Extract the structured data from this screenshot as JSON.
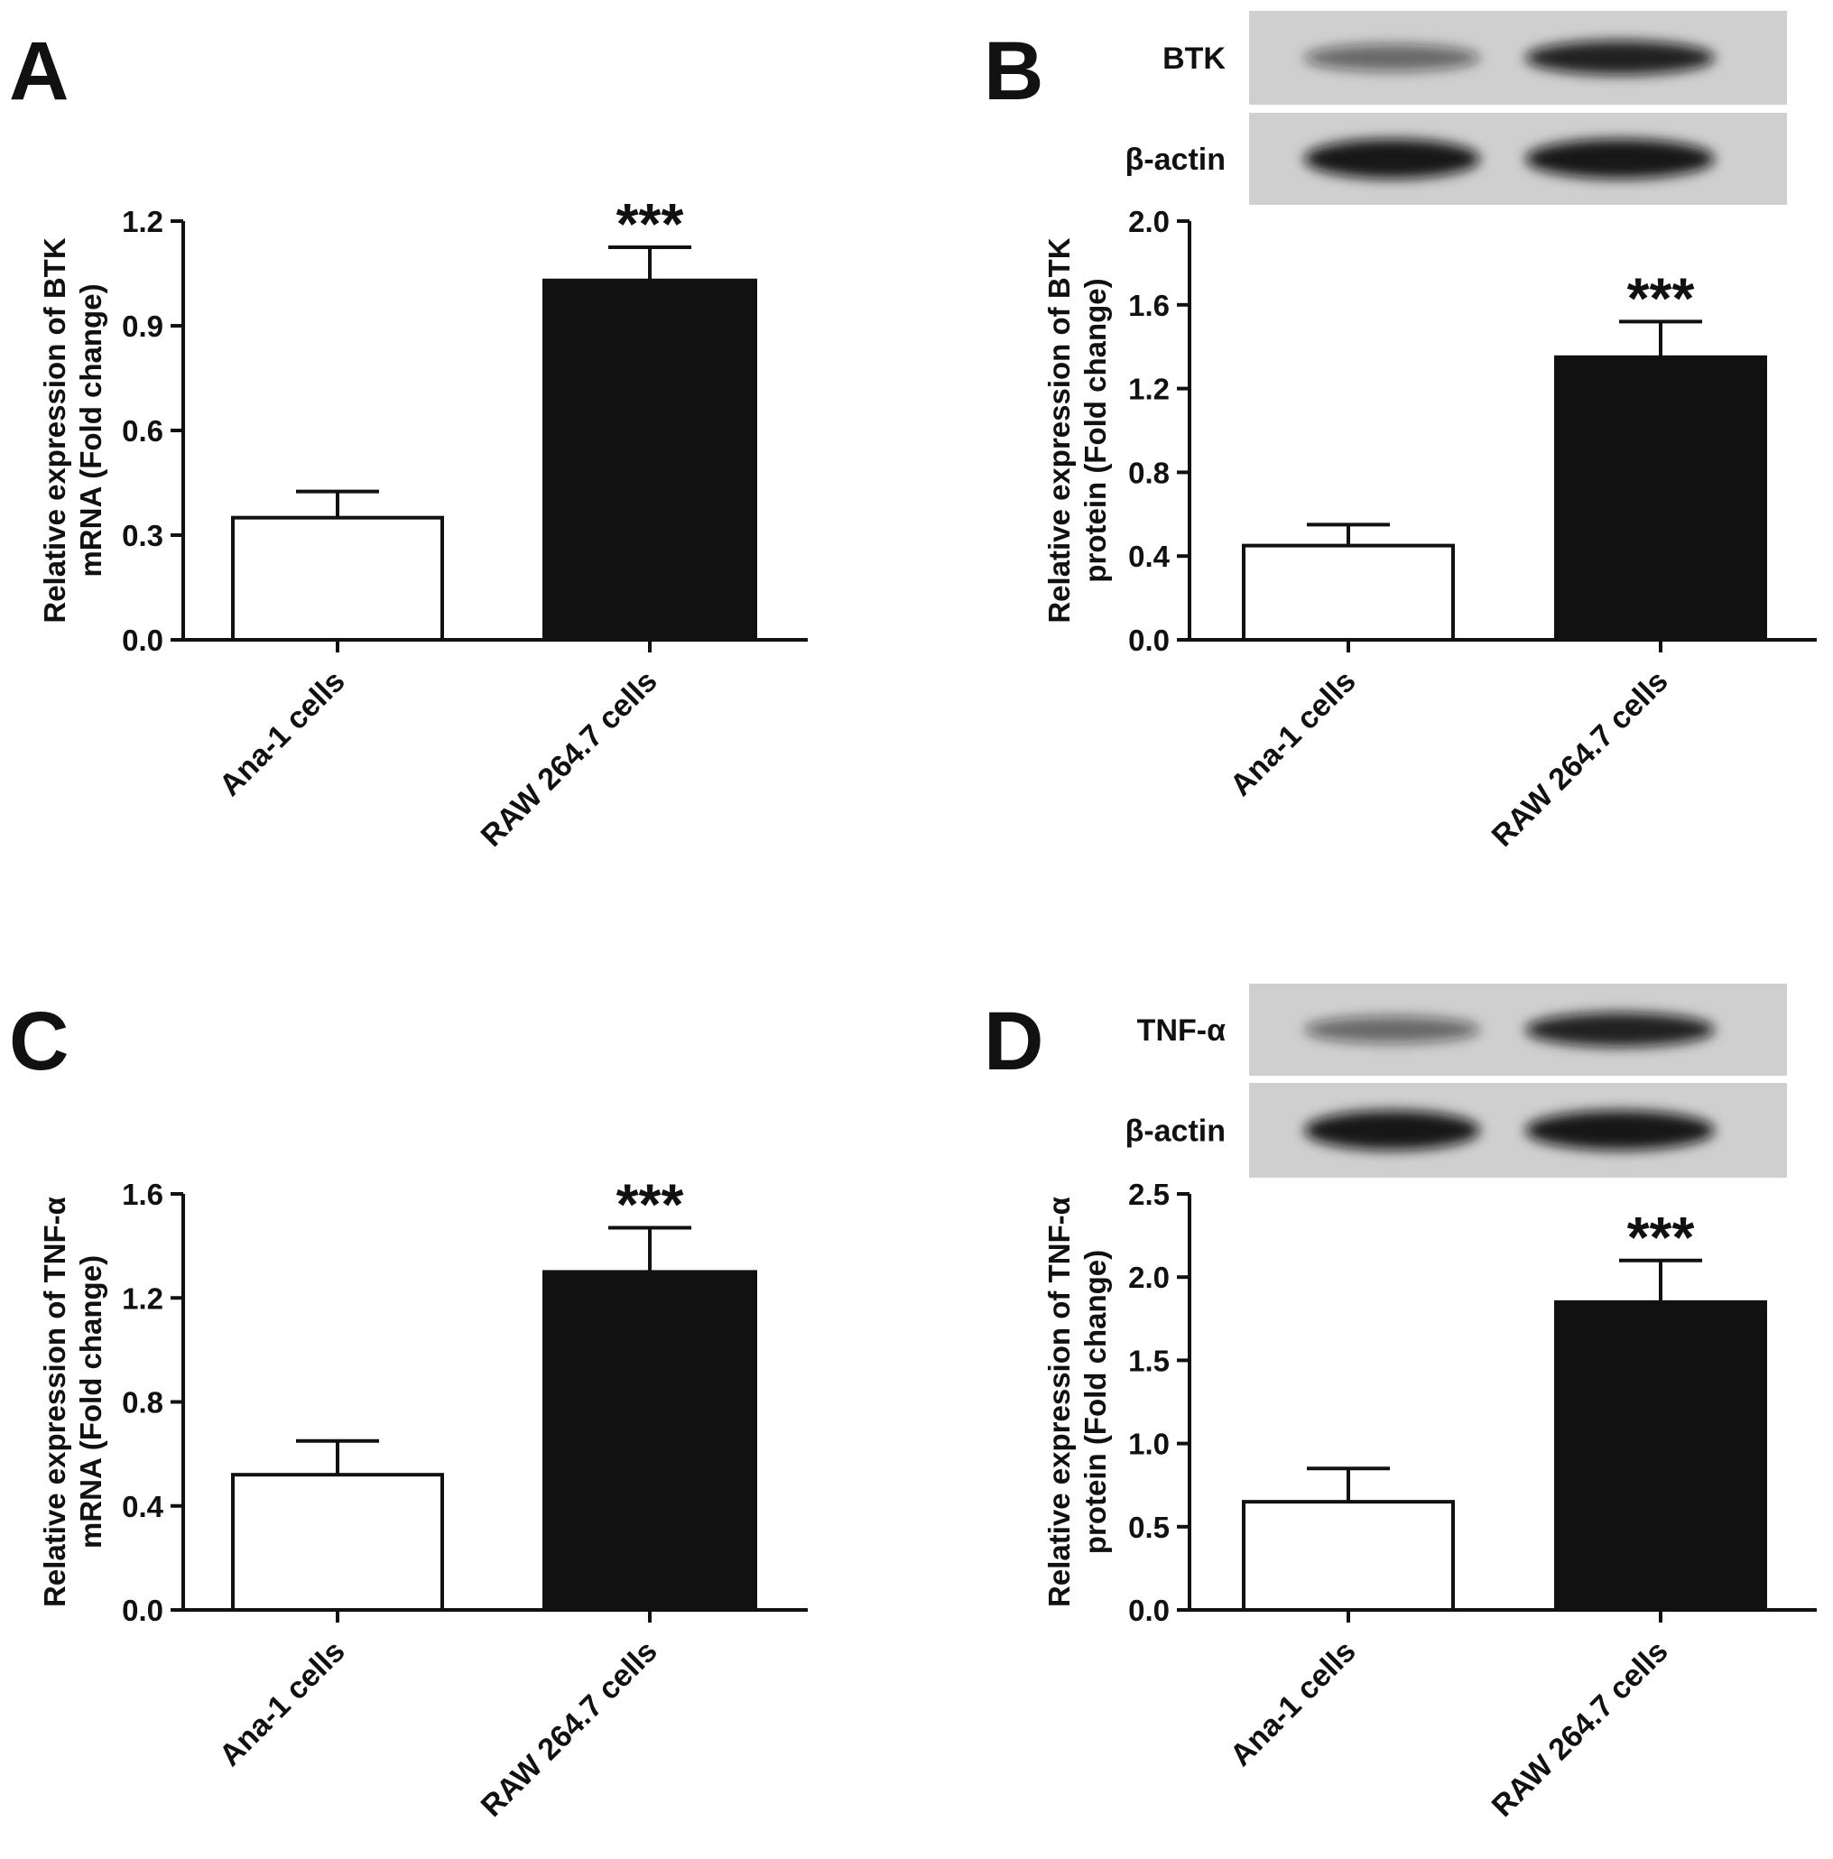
{
  "chart_data": [
    {
      "panel": "A",
      "type": "bar",
      "categories": [
        "Ana-1 cells",
        "RAW 264.7 cells"
      ],
      "values": [
        0.35,
        1.03
      ],
      "errors": [
        0.075,
        0.095
      ],
      "significance": [
        "",
        "***"
      ],
      "ylabel_lines": [
        "Relative expression of BTK",
        "mRNA (Fold change)"
      ],
      "ylim": [
        0,
        1.2
      ],
      "yticks": [
        "0.0",
        "0.3",
        "0.6",
        "0.9",
        "1.2"
      ],
      "bar_fills": [
        "#ffffff",
        "#111111"
      ],
      "blot": null
    },
    {
      "panel": "B",
      "type": "bar",
      "categories": [
        "Ana-1 cells",
        "RAW 264.7 cells"
      ],
      "values": [
        0.45,
        1.35
      ],
      "errors": [
        0.1,
        0.17
      ],
      "significance": [
        "",
        "***"
      ],
      "ylabel_lines": [
        "Relative expression of BTK",
        "protein (Fold change)"
      ],
      "ylim": [
        0,
        2.0
      ],
      "yticks": [
        "0.0",
        "0.4",
        "0.8",
        "1.2",
        "1.6",
        "2.0"
      ],
      "bar_fills": [
        "#ffffff",
        "#111111"
      ],
      "blot": {
        "rows": [
          "BTK",
          "β-actin"
        ]
      }
    },
    {
      "panel": "C",
      "type": "bar",
      "categories": [
        "Ana-1 cells",
        "RAW 264.7 cells"
      ],
      "values": [
        0.52,
        1.3
      ],
      "errors": [
        0.13,
        0.17
      ],
      "significance": [
        "",
        "***"
      ],
      "ylabel_lines": [
        "Relative expression of TNF-α",
        "mRNA (Fold change)"
      ],
      "ylim": [
        0,
        1.6
      ],
      "yticks": [
        "0.0",
        "0.4",
        "0.8",
        "1.2",
        "1.6"
      ],
      "bar_fills": [
        "#ffffff",
        "#111111"
      ],
      "blot": null
    },
    {
      "panel": "D",
      "type": "bar",
      "categories": [
        "Ana-1 cells",
        "RAW 264.7 cells"
      ],
      "values": [
        0.65,
        1.85
      ],
      "errors": [
        0.2,
        0.25
      ],
      "significance": [
        "",
        "***"
      ],
      "ylabel_lines": [
        "Relative expression of TNF-α",
        "protein (Fold change)"
      ],
      "ylim": [
        0,
        2.5
      ],
      "yticks": [
        "0.0",
        "0.5",
        "1.0",
        "1.5",
        "2.0",
        "2.5"
      ],
      "bar_fills": [
        "#ffffff",
        "#111111"
      ],
      "blot": {
        "rows": [
          "TNF-α",
          "β-actin"
        ]
      }
    }
  ]
}
